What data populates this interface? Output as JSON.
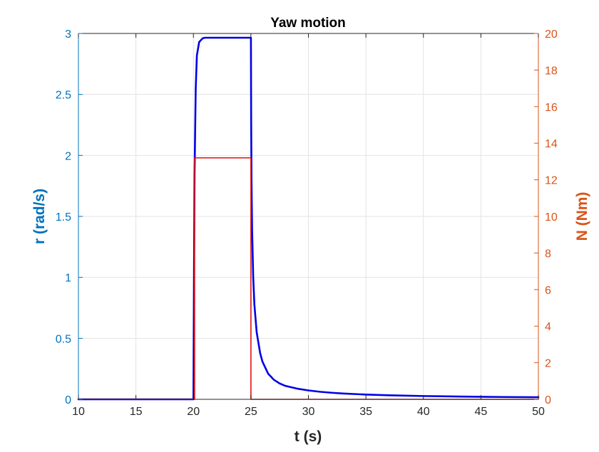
{
  "chart_data": {
    "type": "line",
    "title": "Yaw motion",
    "xlabel": "t (s)",
    "ylabel_left": "r (rad/s)",
    "ylabel_right": "N (Nm)",
    "xlim": [
      10,
      50
    ],
    "ylim_left": [
      0,
      3
    ],
    "ylim_right": [
      0,
      20
    ],
    "xticks": [
      "10",
      "15",
      "20",
      "25",
      "30",
      "35",
      "40",
      "45",
      "50"
    ],
    "yticks_left": [
      "0",
      "0.5",
      "1",
      "1.5",
      "2",
      "2.5",
      "3"
    ],
    "yticks_right": [
      "0",
      "2",
      "4",
      "6",
      "8",
      "10",
      "12",
      "14",
      "16",
      "18",
      "20"
    ],
    "grid": true,
    "colors": {
      "left_axis": "#0072BD",
      "right_axis": "#D95319",
      "series_r": "#0000E6",
      "series_N": "#E01010",
      "grid": "#E3E3E3"
    },
    "series": [
      {
        "axis": "left",
        "x": [
          10,
          20,
          20.05,
          20.1,
          20.2,
          20.3,
          20.5,
          20.8,
          21,
          25,
          25.02,
          25.05,
          25.1,
          25.2,
          25.3,
          25.5,
          25.8,
          26,
          26.5,
          27,
          27.5,
          28,
          29,
          30,
          31,
          32,
          33,
          35,
          37,
          40,
          43,
          45,
          47,
          50
        ],
        "y": [
          0,
          0,
          1.0,
          1.85,
          2.55,
          2.82,
          2.93,
          2.96,
          2.965,
          2.965,
          2.3,
          1.8,
          1.4,
          1.0,
          0.78,
          0.55,
          0.38,
          0.31,
          0.21,
          0.16,
          0.13,
          0.11,
          0.088,
          0.073,
          0.062,
          0.054,
          0.048,
          0.039,
          0.033,
          0.027,
          0.023,
          0.021,
          0.019,
          0.017
        ]
      },
      {
        "axis": "right",
        "x": [
          10,
          20.1,
          20.1,
          25,
          25,
          50
        ],
        "y": [
          0,
          0,
          13.2,
          13.2,
          0,
          0
        ]
      }
    ]
  }
}
